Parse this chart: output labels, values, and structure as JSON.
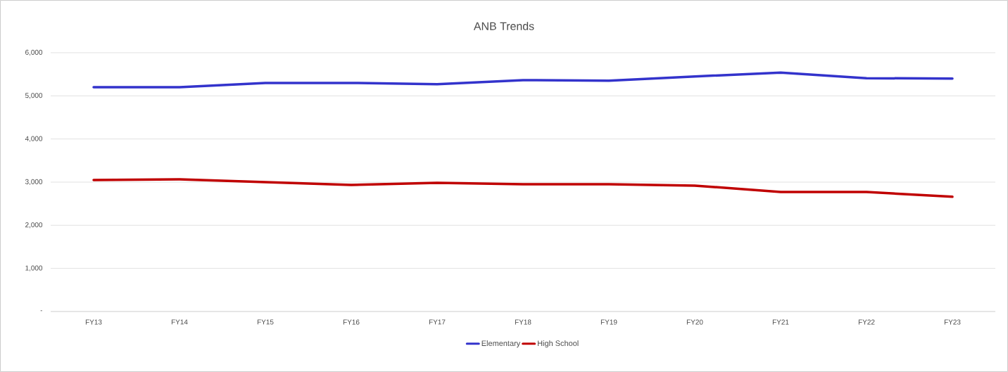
{
  "chart_data": {
    "type": "line",
    "title": "ANB Trends",
    "categories": [
      "FY13",
      "FY14",
      "FY15",
      "FY16",
      "FY17",
      "FY18",
      "FY19",
      "FY20",
      "FY21",
      "FY22",
      "FY23"
    ],
    "series": [
      {
        "name": "Elementary",
        "color": "#3333cc",
        "values": [
          5200,
          5200,
          5300,
          5300,
          5270,
          5365,
          5350,
          5450,
          5540,
          5410,
          5400
        ]
      },
      {
        "name": "High School",
        "color": "#c00000",
        "values": [
          3050,
          3065,
          3000,
          2935,
          2985,
          2950,
          2950,
          2920,
          2770,
          2770,
          2660
        ]
      }
    ],
    "ylim": [
      0,
      6000
    ],
    "yticks": [
      {
        "value": 0,
        "label": "-"
      },
      {
        "value": 1000,
        "label": "1,000"
      },
      {
        "value": 2000,
        "label": "2,000"
      },
      {
        "value": 3000,
        "label": "3,000"
      },
      {
        "value": 4000,
        "label": "4,000"
      },
      {
        "value": 5000,
        "label": "5,000"
      },
      {
        "value": 6000,
        "label": "6,000"
      }
    ],
    "grid": "y",
    "legend": "bottom",
    "marker": "none",
    "line_style": "solid"
  }
}
